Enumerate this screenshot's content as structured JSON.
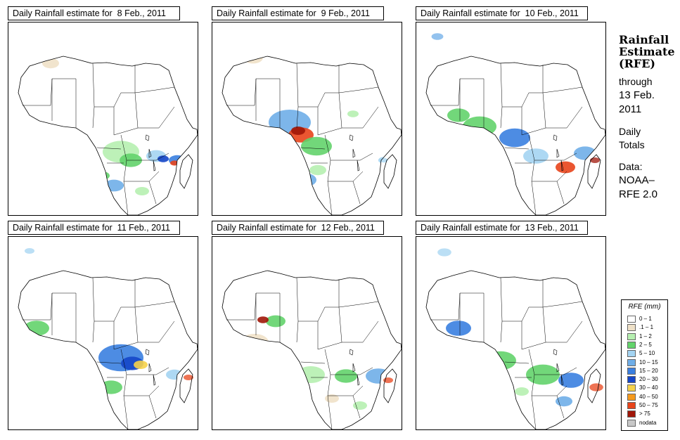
{
  "panels": [
    {
      "title": "Daily Rainfall estimate for  8 Feb., 2011"
    },
    {
      "title": "Daily Rainfall estimate for  9 Feb., 2011"
    },
    {
      "title": "Daily Rainfall estimate for  10 Feb., 2011"
    },
    {
      "title": "Daily Rainfall estimate for  11 Feb., 2011"
    },
    {
      "title": "Daily Rainfall estimate for  12 Feb., 2011"
    },
    {
      "title": "Daily Rainfall estimate for  13 Feb., 2011"
    }
  ],
  "sidebar": {
    "heading_line1": "Rainfall",
    "heading_line2": "Estimate",
    "heading_line3": "(RFE)",
    "through": "through",
    "date_line1": "13 Feb.",
    "date_line2": "2011",
    "daily": "Daily",
    "totals": "Totals",
    "data": "Data:",
    "source1": "NOAA–",
    "source2": "RFE 2.0"
  },
  "legend": {
    "title": "RFE (mm)",
    "items": [
      {
        "label": "0 – 1",
        "color": "#ffffff"
      },
      {
        "label": ".1 – 1",
        "color": "#efe1c8"
      },
      {
        "label": "1 – 2",
        "color": "#b6efb0"
      },
      {
        "label": "2 – 5",
        "color": "#63d36b"
      },
      {
        "label": "5 – 10",
        "color": "#a4d4f2"
      },
      {
        "label": "10 – 15",
        "color": "#6faee8"
      },
      {
        "label": "15 – 20",
        "color": "#3a7fe0"
      },
      {
        "label": "20 – 30",
        "color": "#1546c8"
      },
      {
        "label": "30 – 40",
        "color": "#f6d24a"
      },
      {
        "label": "40 – 50",
        "color": "#f59a1e"
      },
      {
        "label": "50 – 75",
        "color": "#e8441b"
      },
      {
        "label": "> 75",
        "color": "#a01608"
      },
      {
        "label": "nodata",
        "color": "#c8c8c8"
      }
    ]
  }
}
